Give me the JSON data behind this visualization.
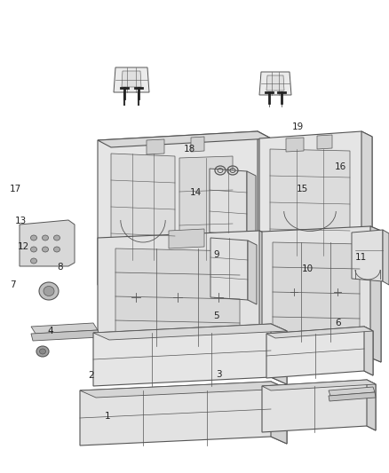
{
  "background_color": "#ffffff",
  "fig_width": 4.38,
  "fig_height": 5.33,
  "dpi": 100,
  "line_color": "#555555",
  "text_color": "#222222",
  "font_size": 7.5,
  "label_positions": {
    "1": [
      0.285,
      0.88,
      "right"
    ],
    "2": [
      0.242,
      0.794,
      "right"
    ],
    "3": [
      0.555,
      0.792,
      "left"
    ],
    "4": [
      0.138,
      0.7,
      "right"
    ],
    "5": [
      0.548,
      0.668,
      "left"
    ],
    "6": [
      0.862,
      0.682,
      "left"
    ],
    "7": [
      0.04,
      0.602,
      "right"
    ],
    "8": [
      0.162,
      0.565,
      "right"
    ],
    "9": [
      0.548,
      0.538,
      "left"
    ],
    "10": [
      0.775,
      0.568,
      "left"
    ],
    "11": [
      0.912,
      0.545,
      "left"
    ],
    "12": [
      0.075,
      0.522,
      "right"
    ],
    "13": [
      0.068,
      0.468,
      "right"
    ],
    "14": [
      0.488,
      0.408,
      "left"
    ],
    "15": [
      0.762,
      0.4,
      "left"
    ],
    "16": [
      0.86,
      0.352,
      "left"
    ],
    "17": [
      0.055,
      0.4,
      "right"
    ],
    "18": [
      0.472,
      0.315,
      "left"
    ],
    "19": [
      0.75,
      0.268,
      "left"
    ]
  }
}
